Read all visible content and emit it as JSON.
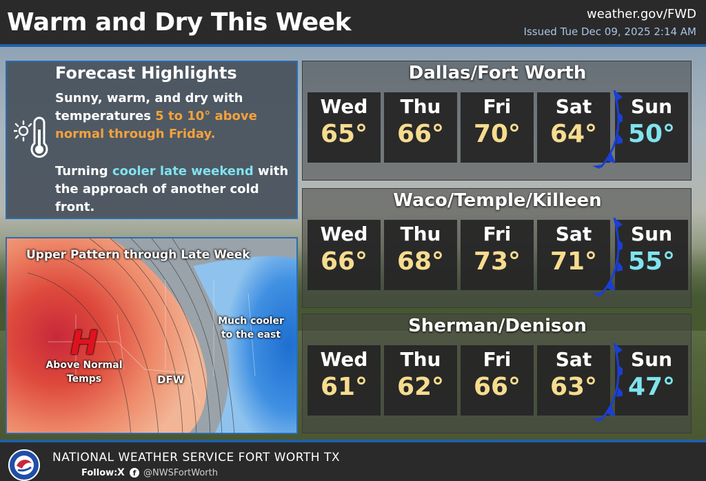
{
  "header": {
    "title": "Warm and Dry This Week",
    "site": "weather.gov/FWD",
    "issued": "Issued Tue Dec 09, 2025 2:14 AM"
  },
  "highlights": {
    "title": "Forecast Highlights",
    "p1_a": "Sunny, warm, and dry with temperatures ",
    "p1_highlight": "5 to 10° above normal through Friday.",
    "p2_a": "Turning ",
    "p2_highlight": "cooler late weekend",
    "p2_b": " with the approach of another cold front.",
    "icon": "sun-thermometer-icon"
  },
  "map": {
    "title": "Upper Pattern through Late Week",
    "high_letter": "H",
    "warm_label": "Above Normal Temps",
    "cool_label": "Much cooler to the east",
    "city_label": "DFW"
  },
  "cities": [
    {
      "name": "Dallas/Fort Worth",
      "days": [
        {
          "day": "Wed",
          "temp": "65°"
        },
        {
          "day": "Thu",
          "temp": "66°"
        },
        {
          "day": "Fri",
          "temp": "70°"
        },
        {
          "day": "Sat",
          "temp": "64°"
        },
        {
          "day": "Sun",
          "temp": "50°"
        }
      ]
    },
    {
      "name": "Waco/Temple/Killeen",
      "days": [
        {
          "day": "Wed",
          "temp": "66°"
        },
        {
          "day": "Thu",
          "temp": "68°"
        },
        {
          "day": "Fri",
          "temp": "73°"
        },
        {
          "day": "Sat",
          "temp": "71°"
        },
        {
          "day": "Sun",
          "temp": "55°"
        }
      ]
    },
    {
      "name": "Sherman/Denison",
      "days": [
        {
          "day": "Wed",
          "temp": "61°"
        },
        {
          "day": "Thu",
          "temp": "62°"
        },
        {
          "day": "Fri",
          "temp": "66°"
        },
        {
          "day": "Sat",
          "temp": "63°"
        },
        {
          "day": "Sun",
          "temp": "47°"
        }
      ]
    }
  ],
  "footer": {
    "office": "NATIONAL WEATHER SERVICE FORT WORTH TX",
    "follow": "Follow:",
    "x": "X",
    "fb": "f",
    "handle": "@NWSFortWorth"
  },
  "colors": {
    "warm_temp": "#f7dc8f",
    "cool_temp": "#7fe3ee",
    "highlight_orange": "#f4a23c",
    "accent_blue": "#1f5fa6",
    "cold_front": "#1a3fd6"
  }
}
